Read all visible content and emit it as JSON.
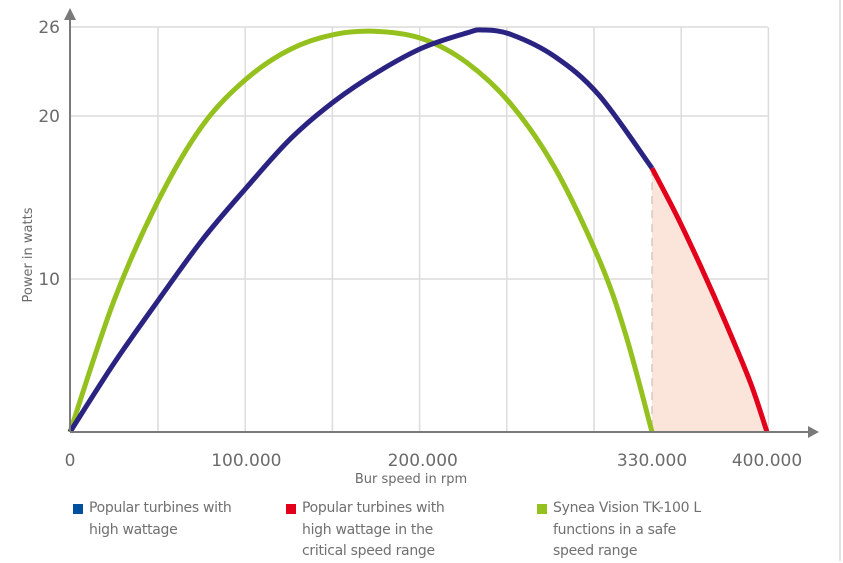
{
  "chart_data": {
    "type": "line",
    "title": "",
    "xlabel": "Bur speed in rpm",
    "ylabel": "Power in watts",
    "xlim": [
      0,
      400000
    ],
    "ylim": [
      0,
      26
    ],
    "x_tick_labels": [
      {
        "value": 0,
        "label": "0"
      },
      {
        "value": 100000,
        "label": "100.000"
      },
      {
        "value": 200000,
        "label": "200.000"
      },
      {
        "value": 330000,
        "label": "330.000"
      },
      {
        "value": 400000,
        "label": "400.000"
      }
    ],
    "y_tick_labels": [
      {
        "value": 10,
        "label": "10"
      },
      {
        "value": 20,
        "label": "20"
      },
      {
        "value": 26,
        "label": "26"
      }
    ],
    "grid": true,
    "critical_threshold_x": 330000,
    "series": [
      {
        "name": "Popular turbines with high wattage",
        "color": "#2a2382",
        "x": [
          0,
          25000,
          50000,
          75000,
          100000,
          125000,
          150000,
          175000,
          200000,
          225000,
          234000,
          250000,
          275000,
          300000,
          330000
        ],
        "y": [
          0,
          4.5,
          8.6,
          12.4,
          15.6,
          18.6,
          21.0,
          23.0,
          24.6,
          25.6,
          25.8,
          25.5,
          24.0,
          21.4,
          16.8
        ]
      },
      {
        "name": "Popular turbines with high wattage in the critical speed range",
        "color": "#e2001a",
        "x": [
          330000,
          345000,
          360000,
          375000,
          390000,
          400000
        ],
        "y": [
          16.8,
          13.9,
          10.7,
          7.1,
          3.2,
          0
        ]
      },
      {
        "name": "Synea Vision TK-100 L functions in a safe speed range",
        "color": "#95c11f",
        "x": [
          0,
          25000,
          50000,
          75000,
          100000,
          125000,
          150000,
          175000,
          200000,
          225000,
          250000,
          275000,
          300000,
          315000,
          330000
        ],
        "y": [
          0,
          8.6,
          14.8,
          19.4,
          22.5,
          24.5,
          25.5,
          25.7,
          25.2,
          23.6,
          20.8,
          16.8,
          11.2,
          6.4,
          0
        ]
      }
    ],
    "critical_area_color": "#fbe4d9",
    "legend": {
      "placement": "bottom",
      "items": [
        {
          "lines": [
            "Popular turbines with",
            "high wattage"
          ],
          "color": "#0050a0"
        },
        {
          "lines": [
            "Popular turbines with",
            "high wattage in the",
            "critical speed range"
          ],
          "color": "#e2001a"
        },
        {
          "lines": [
            "Synea Vision TK-100 L",
            "functions in a safe",
            "speed range"
          ],
          "color": "#95c11f"
        }
      ]
    }
  }
}
